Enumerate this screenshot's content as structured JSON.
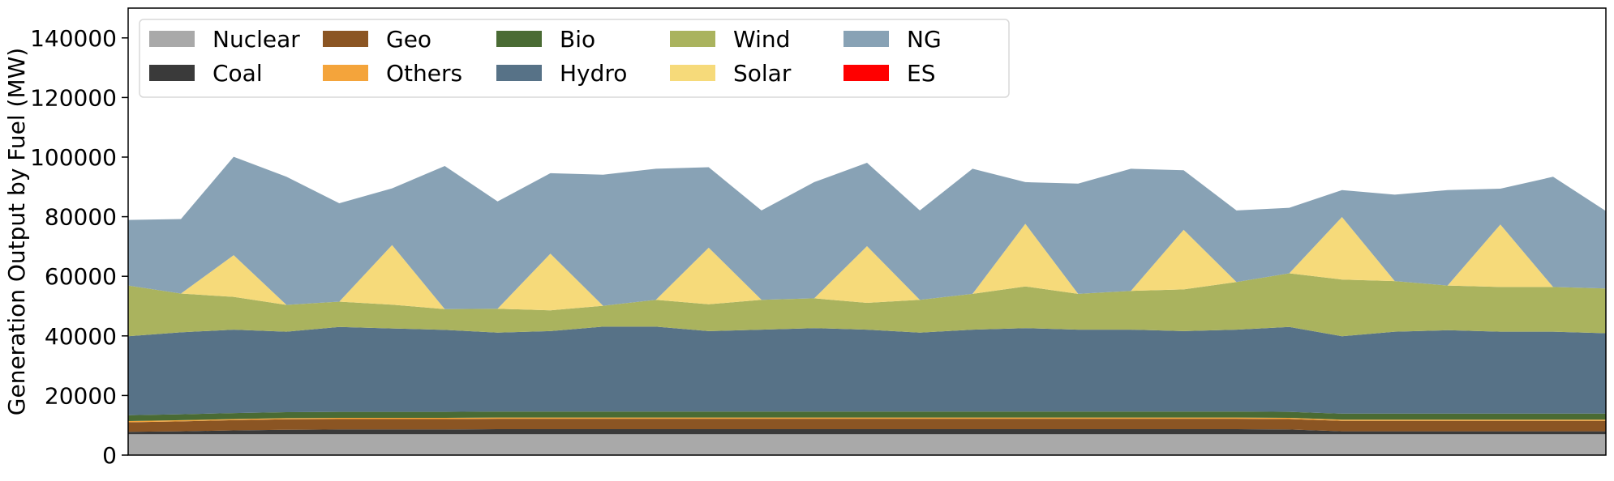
{
  "chart_data": {
    "type": "area",
    "stacked": true,
    "title": "",
    "xlabel": "",
    "ylabel": "Generation Output by Fuel (MW)",
    "ylim": [
      0,
      150000
    ],
    "yticks": [
      0,
      20000,
      40000,
      60000,
      80000,
      100000,
      120000,
      140000
    ],
    "x_unit": "hour",
    "xlim": [
      0,
      168
    ],
    "xticks_visible": false,
    "grid": false,
    "legend": {
      "placement": "top-left",
      "columns": 5
    },
    "x": [
      0,
      6,
      12,
      18,
      24,
      30,
      36,
      42,
      48,
      54,
      60,
      66,
      72,
      78,
      84,
      90,
      96,
      102,
      108,
      114,
      120,
      126,
      132,
      138,
      144,
      150,
      156,
      162,
      168
    ],
    "series": [
      {
        "name": "Nuclear",
        "color": "#a9a9a9",
        "values": [
          7000,
          7000,
          7000,
          7000,
          7000,
          7000,
          7000,
          7000,
          7000,
          7000,
          7000,
          7000,
          7000,
          7000,
          7000,
          7000,
          7000,
          7000,
          7000,
          7000,
          7000,
          7000,
          7000,
          7000,
          7000,
          7000,
          7000,
          7000,
          7000
        ]
      },
      {
        "name": "Coal",
        "color": "#3a3a3a",
        "values": [
          800,
          1000,
          1300,
          1500,
          1600,
          1600,
          1600,
          1700,
          1700,
          1700,
          1700,
          1700,
          1700,
          1700,
          1700,
          1700,
          1700,
          1700,
          1700,
          1700,
          1700,
          1700,
          1600,
          1000,
          1000,
          1000,
          1000,
          1000,
          1000
        ]
      },
      {
        "name": "Geo",
        "color": "#8b5523",
        "values": [
          3200,
          3300,
          3400,
          3500,
          3500,
          3500,
          3500,
          3500,
          3500,
          3500,
          3500,
          3500,
          3500,
          3500,
          3500,
          3500,
          3500,
          3500,
          3500,
          3500,
          3500,
          3500,
          3500,
          3500,
          3500,
          3500,
          3500,
          3500,
          3500
        ]
      },
      {
        "name": "Others",
        "color": "#f4a43b",
        "values": [
          400,
          400,
          400,
          400,
          400,
          400,
          400,
          400,
          400,
          400,
          400,
          400,
          400,
          400,
          400,
          400,
          400,
          400,
          400,
          400,
          400,
          400,
          400,
          400,
          400,
          400,
          400,
          400,
          400
        ]
      },
      {
        "name": "Bio",
        "color": "#4a6b34",
        "values": [
          2000,
          2000,
          2000,
          2000,
          2000,
          2000,
          2000,
          2000,
          2000,
          2000,
          2000,
          2000,
          2000,
          2000,
          2000,
          2000,
          2000,
          2000,
          2000,
          2000,
          2000,
          2000,
          2000,
          2000,
          2000,
          2000,
          2000,
          2000,
          2000
        ]
      },
      {
        "name": "Hydro",
        "color": "#577287",
        "values": [
          26500,
          27500,
          28000,
          27000,
          28500,
          28000,
          27500,
          26500,
          27000,
          28500,
          28500,
          27000,
          27500,
          28000,
          27500,
          26500,
          27500,
          28000,
          27500,
          27500,
          27000,
          27500,
          28500,
          26000,
          27500,
          28000,
          27500,
          27500,
          27000
        ]
      },
      {
        "name": "Wind",
        "color": "#aab35e",
        "values": [
          17000,
          13000,
          11000,
          9000,
          8500,
          8000,
          7000,
          8000,
          7000,
          7000,
          9000,
          9000,
          10000,
          10000,
          9000,
          11000,
          12000,
          14000,
          12000,
          13000,
          14000,
          16000,
          18000,
          19000,
          17000,
          15000,
          15000,
          15000,
          15000
        ]
      },
      {
        "name": "Solar",
        "color": "#f6da7a",
        "values": [
          0,
          0,
          14000,
          0,
          0,
          20000,
          0,
          0,
          19000,
          0,
          0,
          19000,
          0,
          0,
          19000,
          0,
          0,
          21000,
          0,
          0,
          20000,
          0,
          0,
          21000,
          0,
          0,
          21000,
          0,
          0
        ]
      },
      {
        "name": "NG",
        "color": "#88a2b5",
        "values": [
          22000,
          25000,
          33000,
          43000,
          33000,
          19000,
          48000,
          36000,
          27000,
          44000,
          44000,
          27000,
          30000,
          39000,
          28000,
          30000,
          42000,
          14000,
          37000,
          41000,
          20000,
          24000,
          22000,
          9000,
          29000,
          32000,
          12000,
          37000,
          26000
        ]
      },
      {
        "name": "ES",
        "color": "#ff0000",
        "values": [
          0,
          0,
          0,
          0,
          0,
          0,
          0,
          0,
          0,
          0,
          0,
          0,
          0,
          0,
          0,
          0,
          0,
          0,
          0,
          0,
          0,
          0,
          0,
          0,
          0,
          0,
          0,
          0,
          0
        ]
      }
    ]
  }
}
